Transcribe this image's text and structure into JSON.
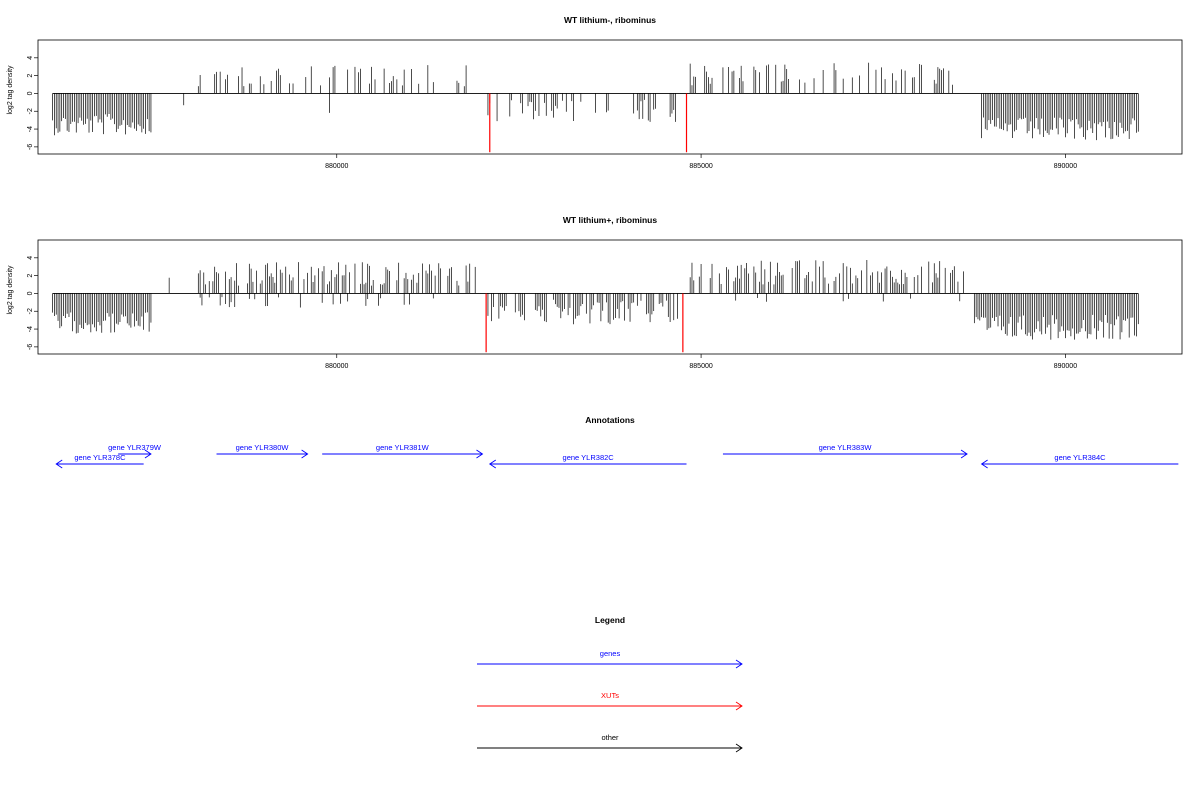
{
  "panels": [
    {
      "title": "WT lithium-, ribominus",
      "ylabel": "log2 tag density",
      "yticks": [
        -6,
        -4,
        -2,
        0,
        2,
        4
      ],
      "xticks": [
        "880000",
        "885000",
        "890000"
      ],
      "xlim": [
        875900,
        891600
      ],
      "ylim": [
        -6.8,
        6
      ],
      "highlight_color": "#ff0000",
      "regions": [
        {
          "start": 876100,
          "end": 877450,
          "sign": -1,
          "mean": 3.5,
          "var": 1.2,
          "density": 1.0
        },
        {
          "start": 877800,
          "end": 878000,
          "sign": -1,
          "mean": 1.5,
          "var": 0.5,
          "density": 0.1
        },
        {
          "start": 878050,
          "end": 882000,
          "sign": 1,
          "mean": 2.0,
          "var": 1.2,
          "density": 0.35
        },
        {
          "start": 879900,
          "end": 880000,
          "sign": -1,
          "mean": 2.0,
          "var": 0.3,
          "density": 0.2
        },
        {
          "start": 882050,
          "end": 884750,
          "sign": -1,
          "mean": 2.0,
          "var": 1.3,
          "density": 0.35
        },
        {
          "start": 884800,
          "end": 888600,
          "sign": 1,
          "mean": 2.2,
          "var": 1.3,
          "density": 0.4
        },
        {
          "start": 888100,
          "end": 888200,
          "sign": -1,
          "mean": 2.8,
          "var": 0.2,
          "density": 0.3
        },
        {
          "start": 888850,
          "end": 891000,
          "sign": -1,
          "mean": 4.0,
          "var": 1.3,
          "density": 1.0
        }
      ],
      "highlights": [
        {
          "x": 882100,
          "y": -6.6
        },
        {
          "x": 884800,
          "y": -6.6
        }
      ]
    },
    {
      "title": "WT lithium+, ribominus",
      "ylabel": "log2 tag density",
      "yticks": [
        -6,
        -4,
        -2,
        0,
        2,
        4
      ],
      "xticks": [
        "880000",
        "885000",
        "890000"
      ],
      "xlim": [
        875900,
        891600
      ],
      "ylim": [
        -6.8,
        6
      ],
      "highlight_color": "#ff0000",
      "regions": [
        {
          "start": 876100,
          "end": 877450,
          "sign": -1,
          "mean": 3.3,
          "var": 1.2,
          "density": 1.0
        },
        {
          "start": 877700,
          "end": 877750,
          "sign": 1,
          "mean": 1.8,
          "var": 0.1,
          "density": 0.5
        },
        {
          "start": 878100,
          "end": 881900,
          "sign": 1,
          "mean": 2.2,
          "var": 1.4,
          "density": 0.6
        },
        {
          "start": 878100,
          "end": 881900,
          "sign": -1,
          "mean": 1.0,
          "var": 0.6,
          "density": 0.15
        },
        {
          "start": 882050,
          "end": 884700,
          "sign": -1,
          "mean": 2.1,
          "var": 1.4,
          "density": 0.7
        },
        {
          "start": 884800,
          "end": 888600,
          "sign": 1,
          "mean": 2.4,
          "var": 1.4,
          "density": 0.6
        },
        {
          "start": 884800,
          "end": 888600,
          "sign": -1,
          "mean": 0.8,
          "var": 0.3,
          "density": 0.05
        },
        {
          "start": 888750,
          "end": 891000,
          "sign": -1,
          "mean": 3.8,
          "var": 1.4,
          "density": 1.0
        }
      ],
      "highlights": [
        {
          "x": 882050,
          "y": -6.6
        },
        {
          "x": 884750,
          "y": -6.6
        }
      ]
    }
  ],
  "annotations": {
    "title": "Annotations",
    "color": "#0000ff",
    "genes": [
      {
        "label": "gene YLR379W",
        "x1": 877000,
        "x2": 877450,
        "dir": "right",
        "row": 0
      },
      {
        "label": "gene YLR378C",
        "x1": 876150,
        "x2": 877350,
        "dir": "left",
        "row": 1
      },
      {
        "label": "gene YLR380W",
        "x1": 878350,
        "x2": 879600,
        "dir": "right",
        "row": 0
      },
      {
        "label": "gene YLR381W",
        "x1": 879800,
        "x2": 882000,
        "dir": "right",
        "row": 0
      },
      {
        "label": "gene YLR382C",
        "x1": 882100,
        "x2": 884800,
        "dir": "left",
        "row": 1
      },
      {
        "label": "gene YLR383W",
        "x1": 885300,
        "x2": 888650,
        "dir": "right",
        "row": 0
      },
      {
        "label": "gene YLR384C",
        "x1": 888850,
        "x2": 891550,
        "dir": "left",
        "row": 1
      }
    ]
  },
  "legend": {
    "title": "Legend",
    "items": [
      {
        "label": "genes",
        "color": "#0000ff"
      },
      {
        "label": "XUTs",
        "color": "#ff0000"
      },
      {
        "label": "other",
        "color": "#000000"
      }
    ]
  }
}
